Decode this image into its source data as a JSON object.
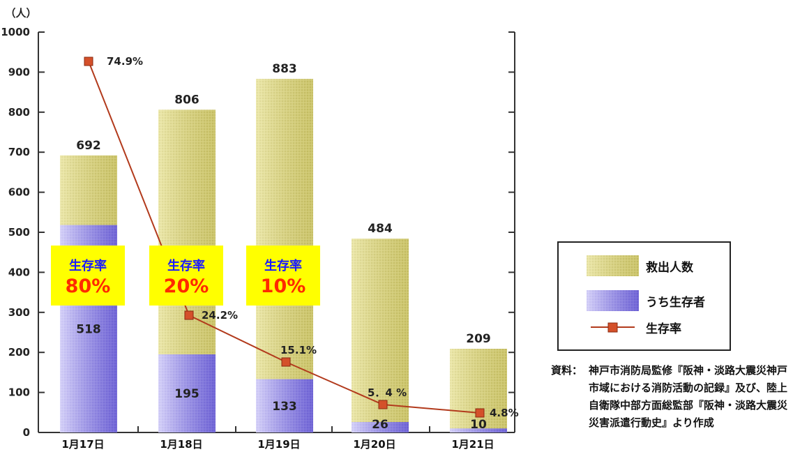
{
  "chart_data": {
    "type": "bar",
    "categories": [
      "1月17日",
      "1月18日",
      "1月19日",
      "1月20日",
      "1月21日"
    ],
    "unit_label": "（人）",
    "ylim": [
      0,
      1000
    ],
    "yticks": [
      0,
      100,
      200,
      300,
      400,
      500,
      600,
      700,
      800,
      900,
      1000
    ],
    "series": [
      {
        "name": "救出人数",
        "values": [
          692,
          806,
          883,
          484,
          209
        ],
        "color": "#d8d27a"
      },
      {
        "name": "うち生存者",
        "values": [
          518,
          195,
          133,
          26,
          10
        ],
        "color": "#8c82e0"
      },
      {
        "name": "生存率",
        "type": "line",
        "values": [
          74.9,
          24.2,
          15.1,
          5.4,
          4.8
        ],
        "labels": [
          "74.9%",
          "24.2%",
          "15.1%",
          "5．4 %",
          "4.8%"
        ],
        "color": "#b23a1c"
      }
    ],
    "badges": [
      {
        "line1": "生存率",
        "line2": "80%"
      },
      {
        "line1": "生存率",
        "line2": "20%"
      },
      {
        "line1": "生存率",
        "line2": "10%"
      }
    ],
    "source_label": "資料：",
    "source_text": "神戸市消防局監修『阪神・淡路大震災神戸市域における消防活動の記録』及び、陸上自衛隊中部方面総監部『阪神・淡路大震災災害派遣行動史』より作成"
  }
}
